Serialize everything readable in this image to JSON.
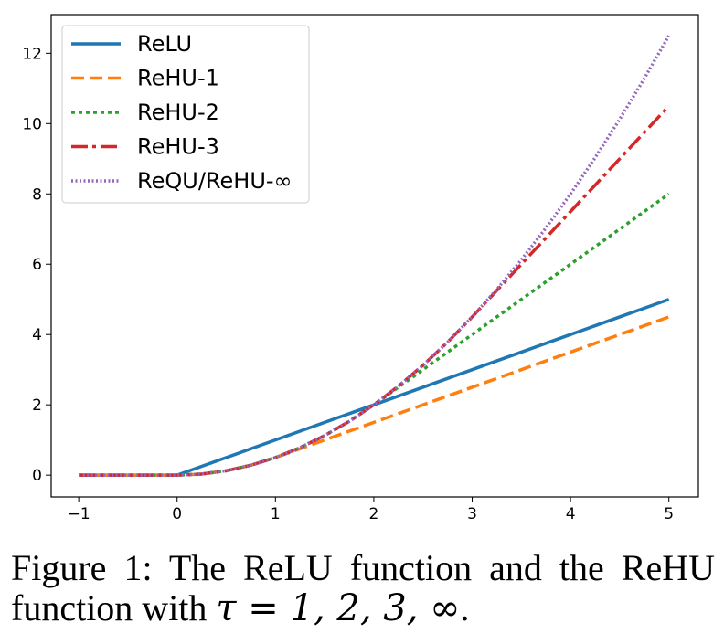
{
  "caption": {
    "prefix": "Figure 1: The ReLU function and the ReHU function with ",
    "math": "τ = 1, 2, 3, ∞",
    "suffix": "."
  },
  "chart_data": {
    "type": "line",
    "title": "",
    "xlabel": "",
    "ylabel": "",
    "xlim": [
      -1.28,
      5.3
    ],
    "ylim": [
      -0.62,
      13.1
    ],
    "xticks": [
      -1,
      0,
      1,
      2,
      3,
      4,
      5
    ],
    "xtick_labels": [
      "−1",
      "0",
      "1",
      "2",
      "3",
      "4",
      "5"
    ],
    "yticks": [
      0,
      2,
      4,
      6,
      8,
      10,
      12
    ],
    "ytick_labels": [
      "0",
      "2",
      "4",
      "6",
      "8",
      "10",
      "12"
    ],
    "grid": false,
    "legend_position": "top-left",
    "x": [
      -1,
      -0.5,
      0,
      0.25,
      0.5,
      0.75,
      1,
      1.25,
      1.5,
      1.75,
      2,
      2.25,
      2.5,
      2.75,
      3,
      3.25,
      3.5,
      3.75,
      4,
      4.25,
      4.5,
      4.75,
      5
    ],
    "series": [
      {
        "name": "ReLU",
        "color": "#1f77b4",
        "style": "solid",
        "values": [
          0,
          0,
          0,
          0.25,
          0.5,
          0.75,
          1,
          1.25,
          1.5,
          1.75,
          2,
          2.25,
          2.5,
          2.75,
          3,
          3.25,
          3.5,
          3.75,
          4,
          4.25,
          4.5,
          4.75,
          5
        ]
      },
      {
        "name": "ReHU-1",
        "color": "#ff7f0e",
        "style": "dashed",
        "values": [
          0,
          0,
          0,
          0.0313,
          0.125,
          0.2813,
          0.5,
          0.75,
          1,
          1.25,
          1.5,
          1.75,
          2,
          2.25,
          2.5,
          2.75,
          3,
          3.25,
          3.5,
          3.75,
          4,
          4.25,
          4.5
        ]
      },
      {
        "name": "ReHU-2",
        "color": "#2ca02c",
        "style": "dotted",
        "values": [
          0,
          0,
          0,
          0.0313,
          0.125,
          0.2813,
          0.5,
          0.7813,
          1.125,
          1.5313,
          2,
          2.5,
          3,
          3.5,
          4,
          4.5,
          5,
          5.5,
          6,
          6.5,
          7,
          7.5,
          8
        ]
      },
      {
        "name": "ReHU-3",
        "color": "#d62728",
        "style": "dashdot",
        "values": [
          0,
          0,
          0,
          0.0313,
          0.125,
          0.2813,
          0.5,
          0.7813,
          1.125,
          1.5313,
          2,
          2.5313,
          3.125,
          3.7813,
          4.5,
          5.25,
          6,
          6.75,
          7.5,
          8.25,
          9,
          9.75,
          10.5
        ]
      },
      {
        "name": "ReQU/ReHU-∞",
        "color": "#9467bd",
        "style": "fine-dotted",
        "values": [
          0,
          0,
          0,
          0.0313,
          0.125,
          0.2813,
          0.5,
          0.7813,
          1.125,
          1.5313,
          2,
          2.5313,
          3.125,
          3.7813,
          4.5,
          5.2813,
          6.125,
          7.0313,
          8,
          9.0313,
          10.125,
          11.2813,
          12.5
        ]
      }
    ]
  }
}
